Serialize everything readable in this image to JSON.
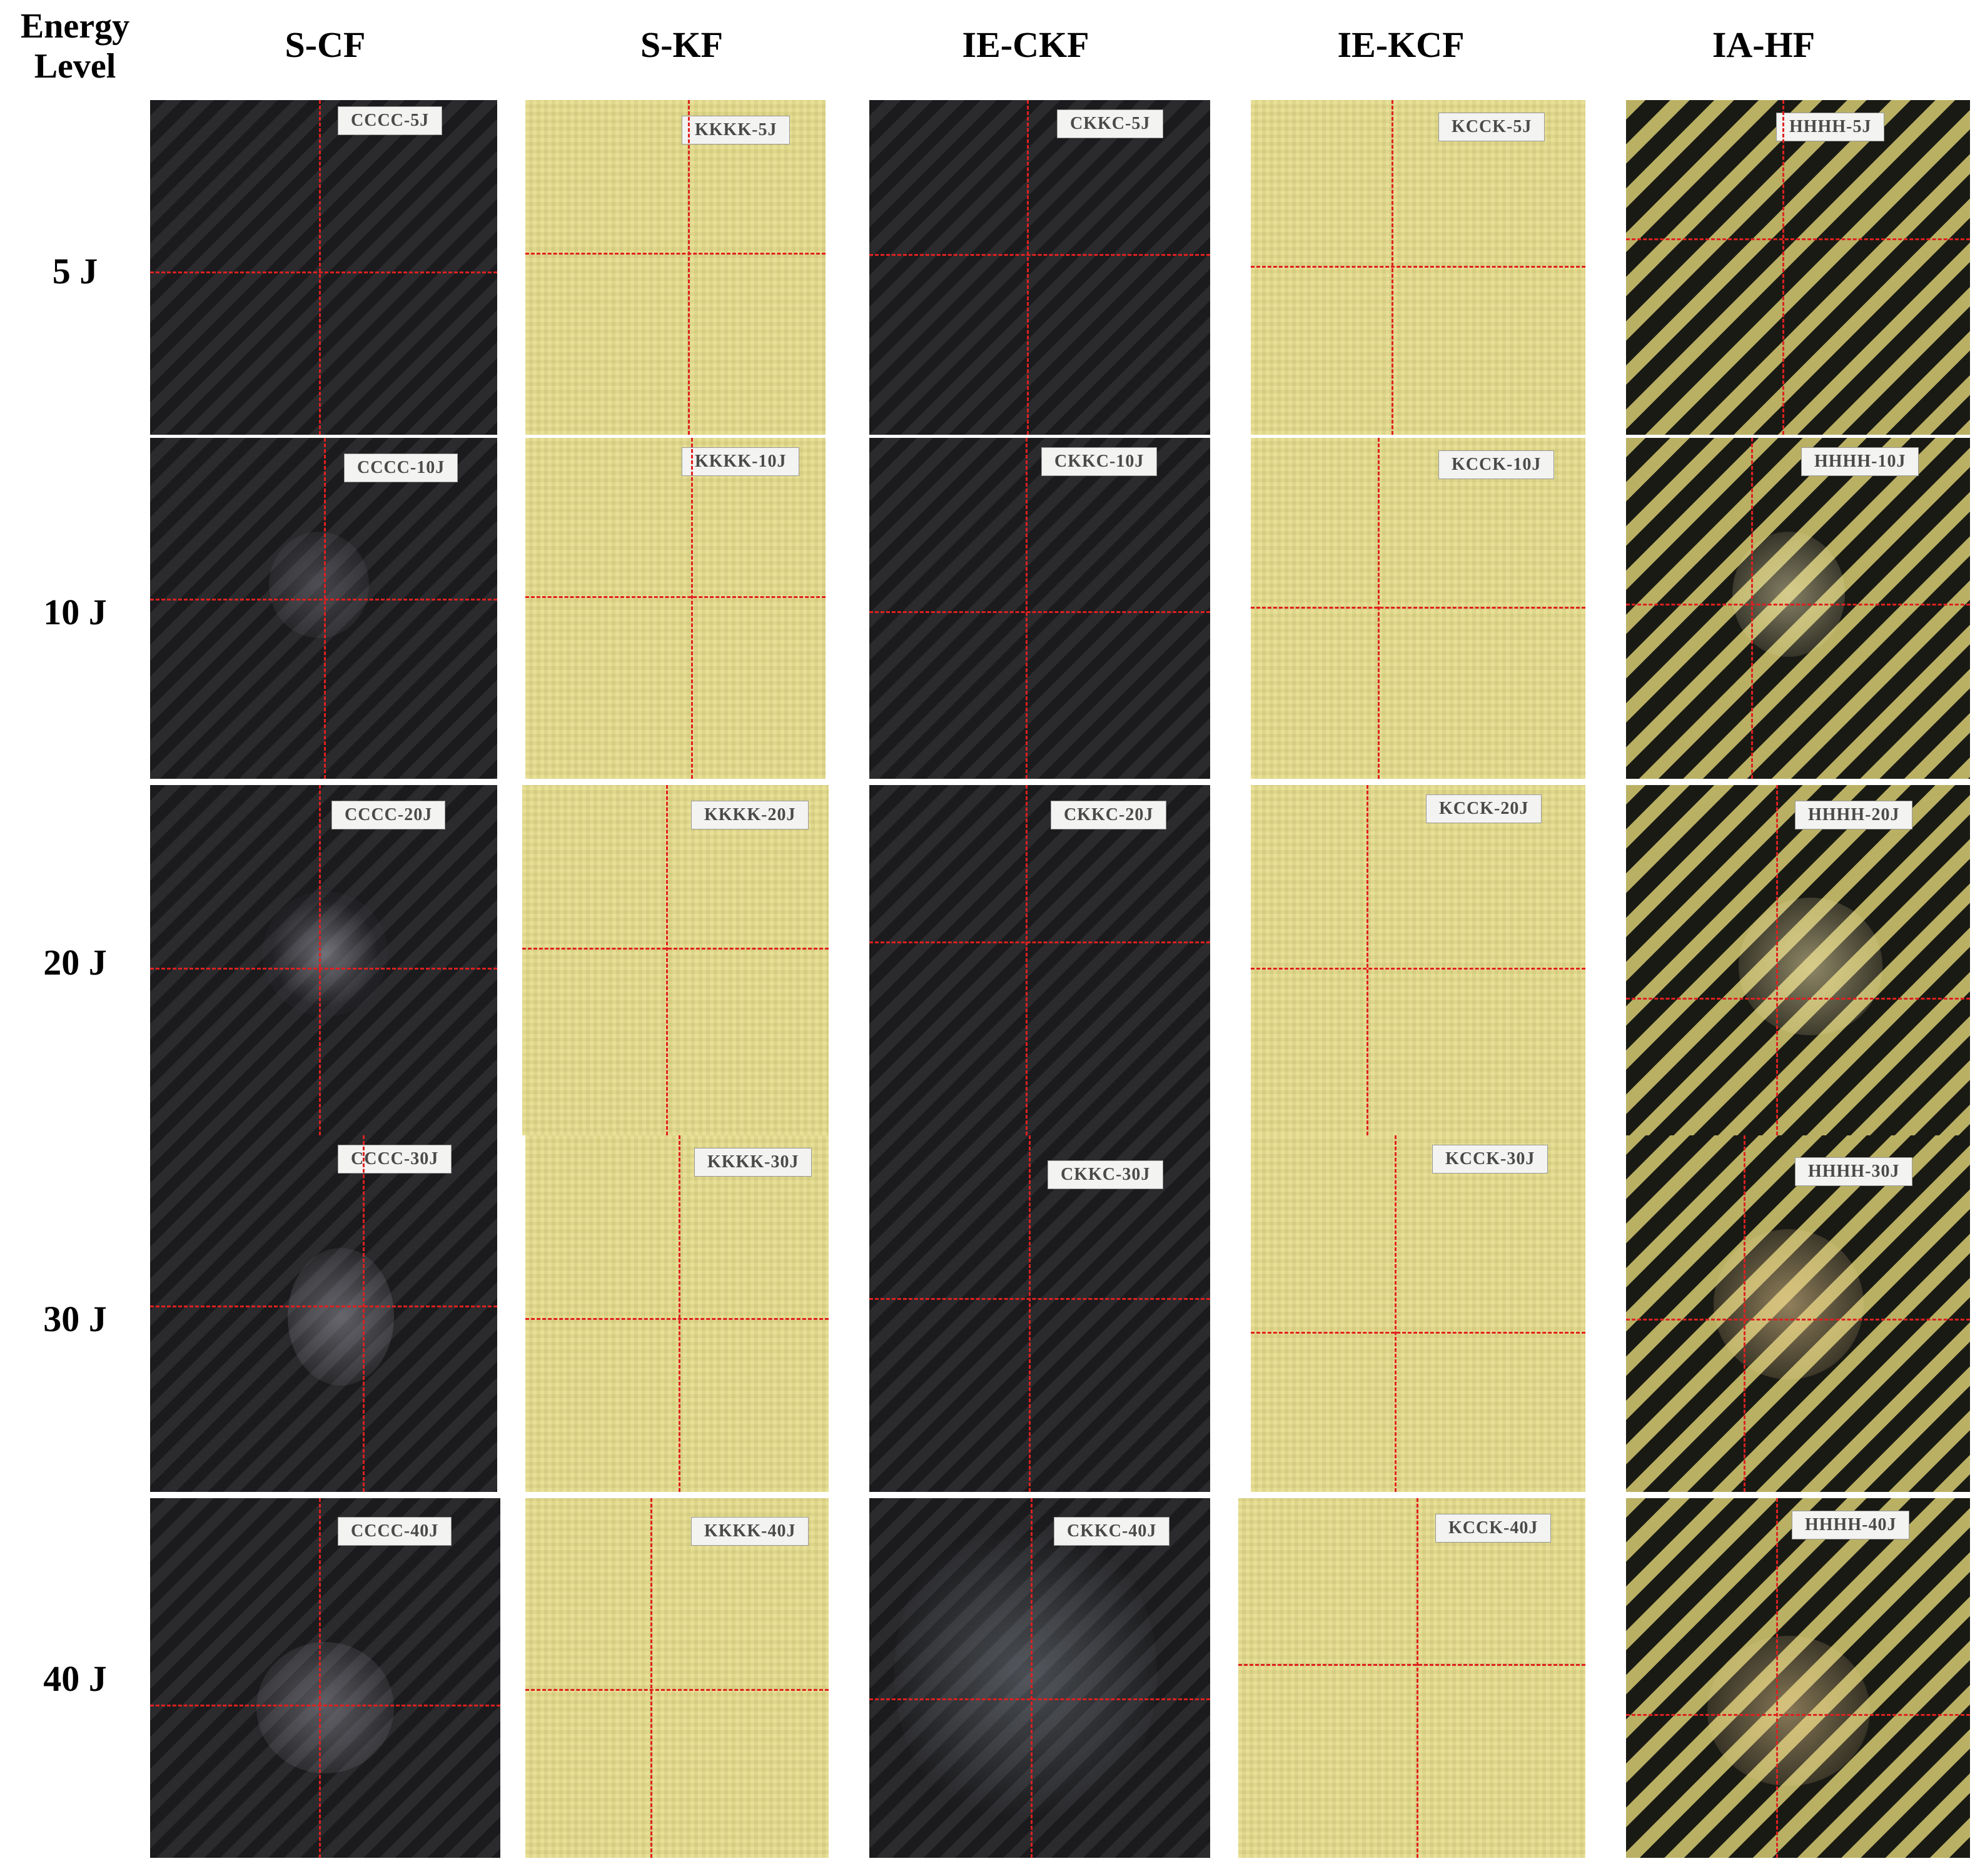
{
  "header": {
    "energy_level_line1": "Energy",
    "energy_level_line2": "Level",
    "columns": [
      "S-CF",
      "S-KF",
      "IE-CKF",
      "IE-KCF",
      "IA-HF"
    ]
  },
  "rows": [
    "5 J",
    "10 J",
    "20 J",
    "30 J",
    "40 J"
  ],
  "specimens": [
    [
      "CCCC-5J",
      "KKKK-5J",
      "CKKC-5J",
      "KCCK-5J",
      "HHHH-5J"
    ],
    [
      "CCCC-10J",
      "KKKK-10J",
      "CKKC-10J",
      "KCCK-10J",
      "HHHH-10J"
    ],
    [
      "CCCC-20J",
      "KKKK-20J",
      "CKKC-20J",
      "KCCK-20J",
      "HHHH-20J"
    ],
    [
      "CCCC-30J",
      "KKKK-30J",
      "CKKC-30J",
      "KCCK-30J",
      "HHHH-30J"
    ],
    [
      "CCCC-40J",
      "KKKK-40J",
      "CKKC-40J",
      "KCCK-40J",
      "HHHH-40J"
    ]
  ],
  "colors": {
    "carbon": "#202022",
    "kevlar": "#e6dd8a",
    "hybrid": "#6d6a42",
    "crosshair": "#e02020"
  }
}
